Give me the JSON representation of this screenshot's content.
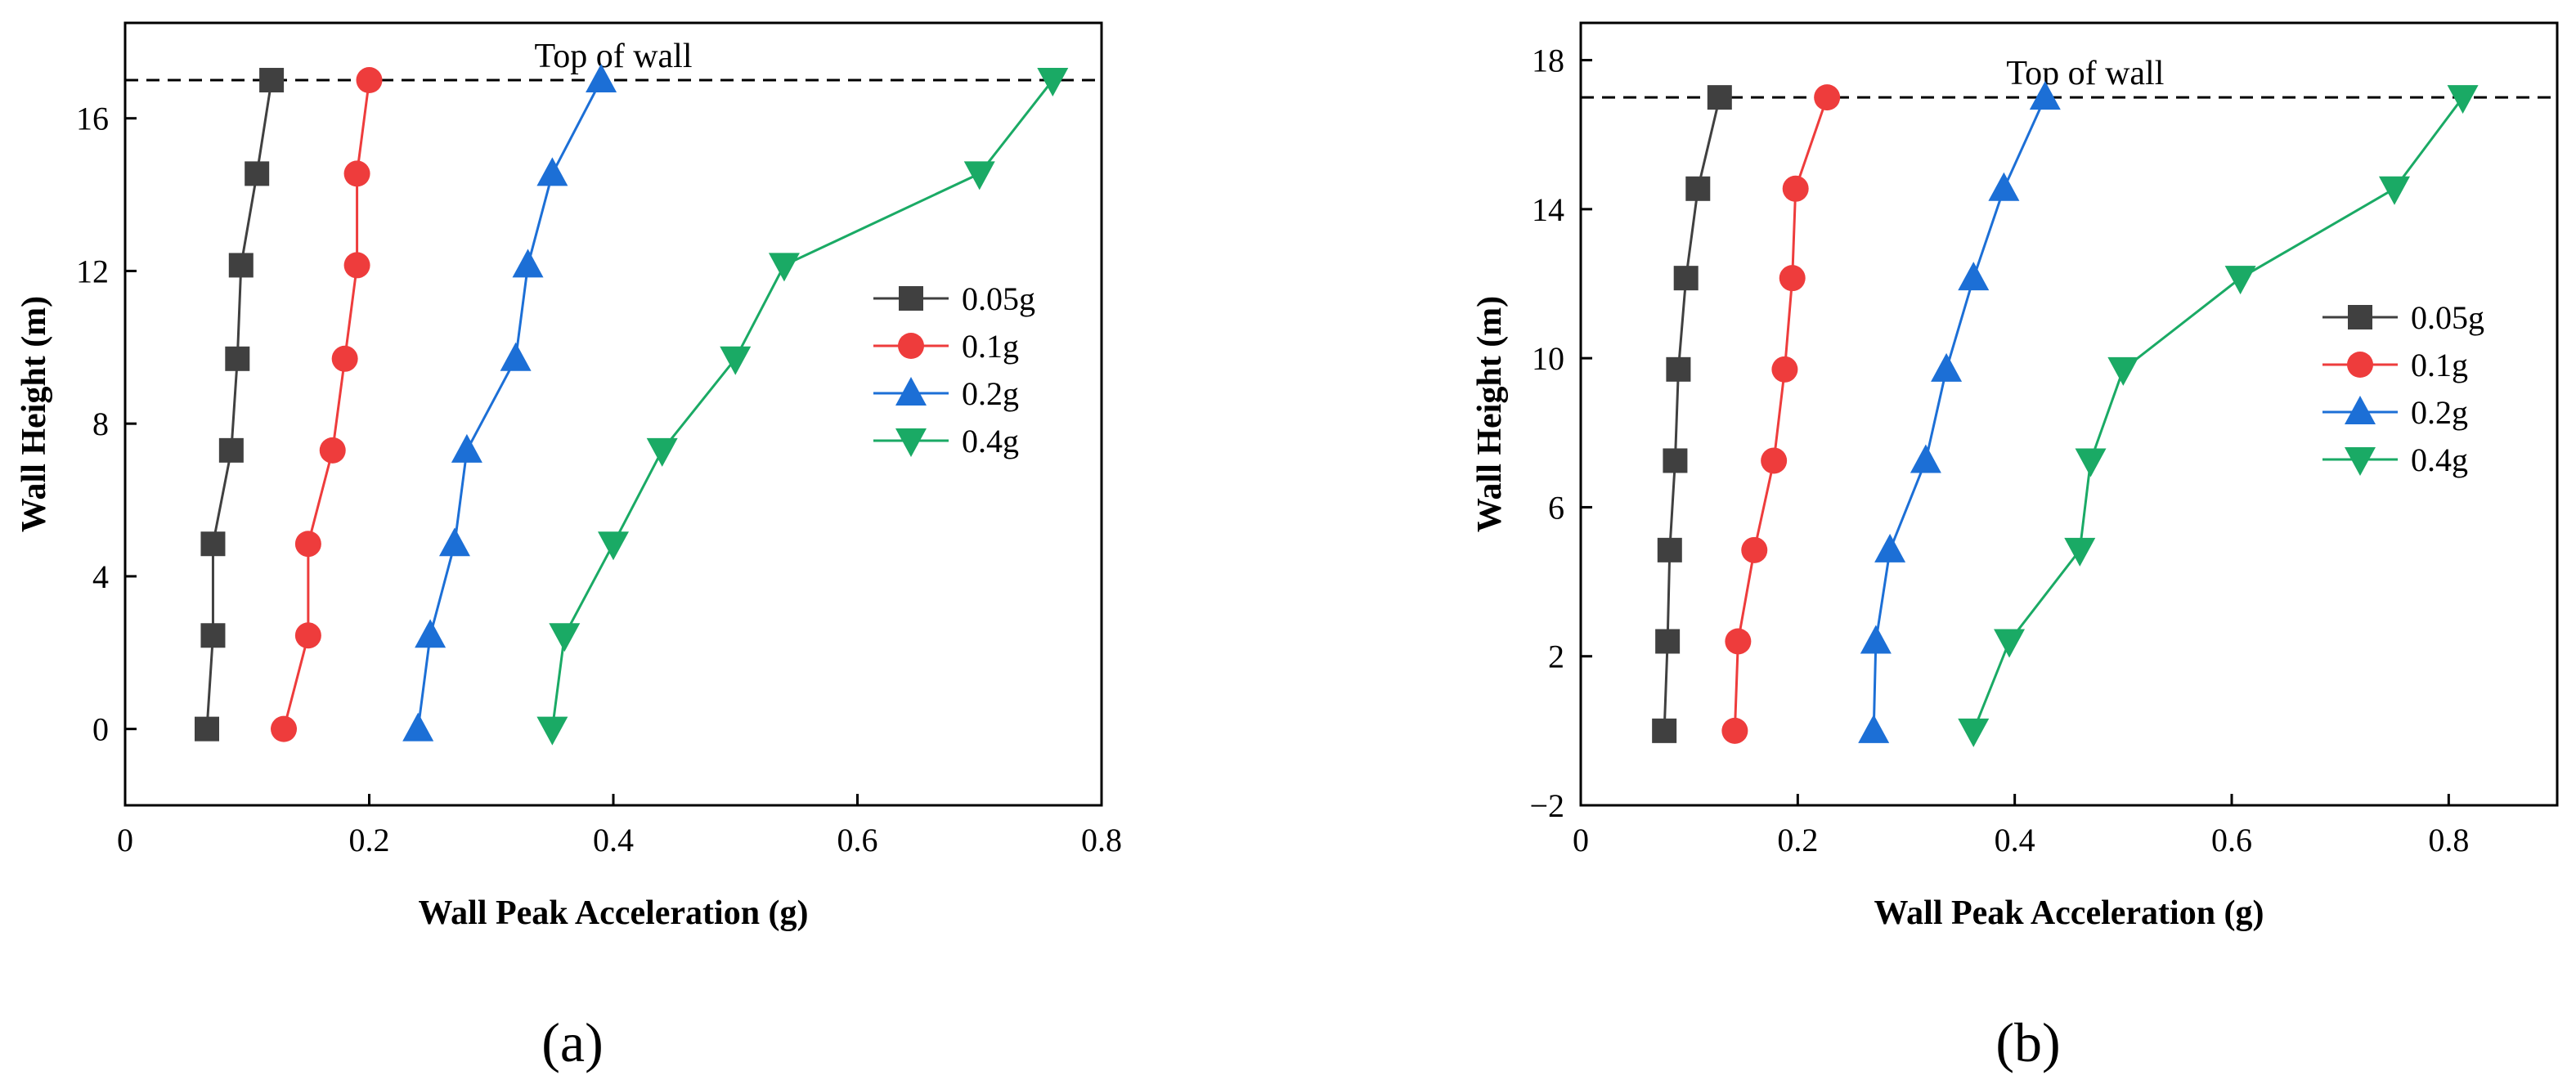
{
  "chart_data": [
    {
      "type": "line",
      "panel_label": "(a)",
      "xlabel": "Wall Peak Acceleration (g)",
      "ylabel": "Wall Height (m)",
      "xlim": [
        0,
        0.8
      ],
      "ylim": [
        -2,
        18.5
      ],
      "xticks": [
        0,
        0.2,
        0.4,
        0.6,
        0.8
      ],
      "xtick_labels": [
        "0",
        "0.2",
        "0.4",
        "0.6",
        "0.8"
      ],
      "yticks": [
        0,
        4,
        8,
        12,
        16
      ],
      "ytick_labels": [
        "0",
        "4",
        "8",
        "12",
        "16"
      ],
      "reference_line": {
        "y": 17,
        "label": "Top of wall",
        "label_x": 0.4,
        "style": "dashed"
      },
      "legend_position": "right",
      "series": [
        {
          "name": "0.05g",
          "color": "#404040",
          "marker": "square",
          "x": [
            0.067,
            0.072,
            0.072,
            0.087,
            0.092,
            0.095,
            0.108,
            0.12
          ],
          "y": [
            0,
            2.45,
            4.85,
            7.3,
            9.7,
            12.15,
            14.55,
            17
          ]
        },
        {
          "name": "0.1g",
          "color": "#ee3c3c",
          "marker": "circle",
          "x": [
            0.13,
            0.15,
            0.15,
            0.17,
            0.18,
            0.19,
            0.19,
            0.2
          ],
          "y": [
            0,
            2.45,
            4.85,
            7.3,
            9.7,
            12.15,
            14.55,
            17
          ]
        },
        {
          "name": "0.2g",
          "color": "#1c6fd6",
          "marker": "triangle-up",
          "x": [
            0.24,
            0.25,
            0.27,
            0.28,
            0.32,
            0.33,
            0.35,
            0.39
          ],
          "y": [
            0,
            2.45,
            4.85,
            7.3,
            9.7,
            12.15,
            14.55,
            17
          ]
        },
        {
          "name": "0.4g",
          "color": "#1aaa65",
          "marker": "triangle-down",
          "x": [
            0.35,
            0.36,
            0.4,
            0.44,
            0.5,
            0.54,
            0.7,
            0.76
          ],
          "y": [
            0,
            2.45,
            4.85,
            7.3,
            9.7,
            12.15,
            14.55,
            17
          ]
        }
      ]
    },
    {
      "type": "line",
      "panel_label": "(b)",
      "xlabel": "Wall Peak Acceleration (g)",
      "ylabel": "Wall Height (m)",
      "xlim": [
        0,
        0.9
      ],
      "ylim": [
        -2,
        19
      ],
      "xticks": [
        0,
        0.2,
        0.4,
        0.6,
        0.8
      ],
      "xtick_labels": [
        "0",
        "0.2",
        "0.4",
        "0.6",
        "0.8"
      ],
      "yticks": [
        -2,
        2,
        6,
        10,
        14,
        18
      ],
      "ytick_labels": [
        "−2",
        "2",
        "6",
        "10",
        "14",
        "18"
      ],
      "reference_line": {
        "y": 17,
        "label": "Top of wall",
        "label_x": 0.465,
        "style": "dashed"
      },
      "legend_position": "right",
      "series": [
        {
          "name": "0.05g",
          "color": "#404040",
          "marker": "square",
          "x": [
            0.077,
            0.08,
            0.082,
            0.087,
            0.09,
            0.097,
            0.108,
            0.128
          ],
          "y": [
            0,
            2.4,
            4.85,
            7.25,
            9.7,
            12.15,
            14.55,
            17
          ]
        },
        {
          "name": "0.1g",
          "color": "#ee3c3c",
          "marker": "circle",
          "x": [
            0.142,
            0.145,
            0.16,
            0.178,
            0.188,
            0.195,
            0.198,
            0.227
          ],
          "y": [
            0,
            2.4,
            4.85,
            7.25,
            9.7,
            12.15,
            14.55,
            17
          ]
        },
        {
          "name": "0.2g",
          "color": "#1c6fd6",
          "marker": "triangle-up",
          "x": [
            0.27,
            0.272,
            0.285,
            0.318,
            0.337,
            0.362,
            0.39,
            0.428
          ],
          "y": [
            0,
            2.4,
            4.85,
            7.25,
            9.7,
            12.15,
            14.55,
            17
          ]
        },
        {
          "name": "0.4g",
          "color": "#1aaa65",
          "marker": "triangle-down",
          "x": [
            0.362,
            0.395,
            0.46,
            0.47,
            0.5,
            0.608,
            0.75,
            0.813
          ],
          "y": [
            0,
            2.4,
            4.85,
            7.25,
            9.7,
            12.15,
            14.55,
            17
          ]
        }
      ]
    }
  ]
}
